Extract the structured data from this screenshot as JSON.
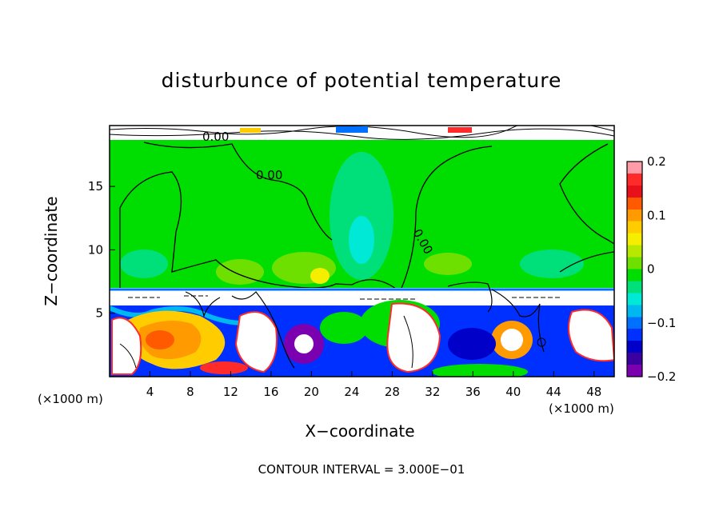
{
  "chart_data": {
    "type": "heatmap",
    "title": "disturbunce of potential temperature",
    "xlabel": "X−coordinate",
    "ylabel": "Z−coordinate",
    "x_unit": "(×1000 m)",
    "x_ticks": [
      4,
      8,
      12,
      16,
      20,
      24,
      28,
      32,
      36,
      40,
      44,
      48
    ],
    "y_ticks": [
      5,
      10,
      15
    ],
    "xlim": [
      0,
      50
    ],
    "ylim": [
      0,
      19.8
    ],
    "colorbar": {
      "ticks": [
        "0.2",
        "0.1",
        "0",
        "−0.1",
        "−0.2"
      ],
      "range": [
        -0.2,
        0.2
      ],
      "colors": [
        "#ff9ca8",
        "#ff2a2a",
        "#e8101a",
        "#ff5a00",
        "#ff9a00",
        "#ffcc00",
        "#f5ee00",
        "#b8e800",
        "#6ee000",
        "#00dd00",
        "#00e07a",
        "#00e8d6",
        "#00b8f0",
        "#0070ff",
        "#0030ff",
        "#0000c8",
        "#3a00a0",
        "#7a00b0"
      ]
    },
    "contour_labels": [
      "0.00",
      "0.00",
      "0.00"
    ],
    "footer": "CONTOUR INTERVAL = 3.000E−01"
  }
}
